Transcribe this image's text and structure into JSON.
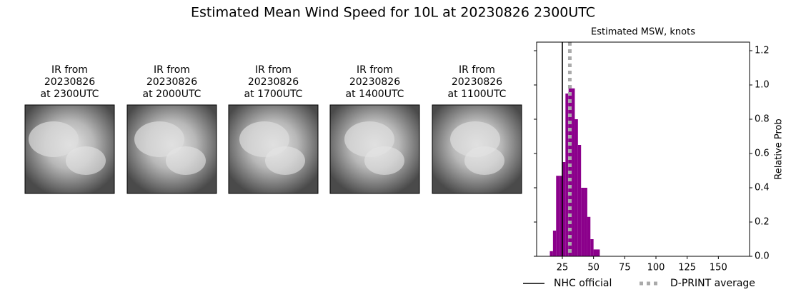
{
  "title": "Estimated Mean Wind Speed for 10L at 20230826 2300UTC",
  "panels": [
    [
      "IR from",
      "20230826",
      "at 2300UTC"
    ],
    [
      "IR from",
      "20230826",
      "at 2000UTC"
    ],
    [
      "IR from",
      "20230826",
      "at 1700UTC"
    ],
    [
      "IR from",
      "20230826",
      "at 1400UTC"
    ],
    [
      "IR from",
      "20230826",
      "at 1100UTC"
    ]
  ],
  "chart_data": {
    "type": "histogram",
    "title": "Estimated MSW, knots",
    "ylabel": "Relative Prob",
    "bins": [
      15,
      17.5,
      20,
      22.5,
      25,
      27.5,
      30,
      32.5,
      35,
      37.5,
      40,
      42.5,
      45,
      47.5,
      50,
      52.5,
      55
    ],
    "values": [
      0.03,
      0.15,
      0.47,
      0.47,
      0.55,
      0.95,
      1.0,
      0.98,
      0.8,
      0.65,
      0.4,
      0.4,
      0.23,
      0.1,
      0.04,
      0.04
    ],
    "color": "#8b008b",
    "xlim": [
      4.4,
      175
    ],
    "xticks": [
      25,
      50,
      75,
      100,
      125,
      150
    ],
    "ylim": [
      0,
      1.25
    ],
    "yticks": [
      {
        "value": 0,
        "label": "0.0"
      },
      {
        "value": 0.2,
        "label": "0.2"
      },
      {
        "value": 0.4,
        "label": "0.4"
      },
      {
        "value": 0.6,
        "label": "0.6"
      },
      {
        "value": 0.8,
        "label": "0.8"
      },
      {
        "value": 1.0,
        "label": "1.0"
      },
      {
        "value": 1.2,
        "label": "1.2"
      }
    ],
    "lines": [
      {
        "name": "NHC official",
        "value": 25,
        "color": "#000000",
        "style": "solid"
      },
      {
        "name": "D-PRINT average",
        "value": 31,
        "color": "#aaaaaa",
        "style": "dotted"
      }
    ]
  }
}
